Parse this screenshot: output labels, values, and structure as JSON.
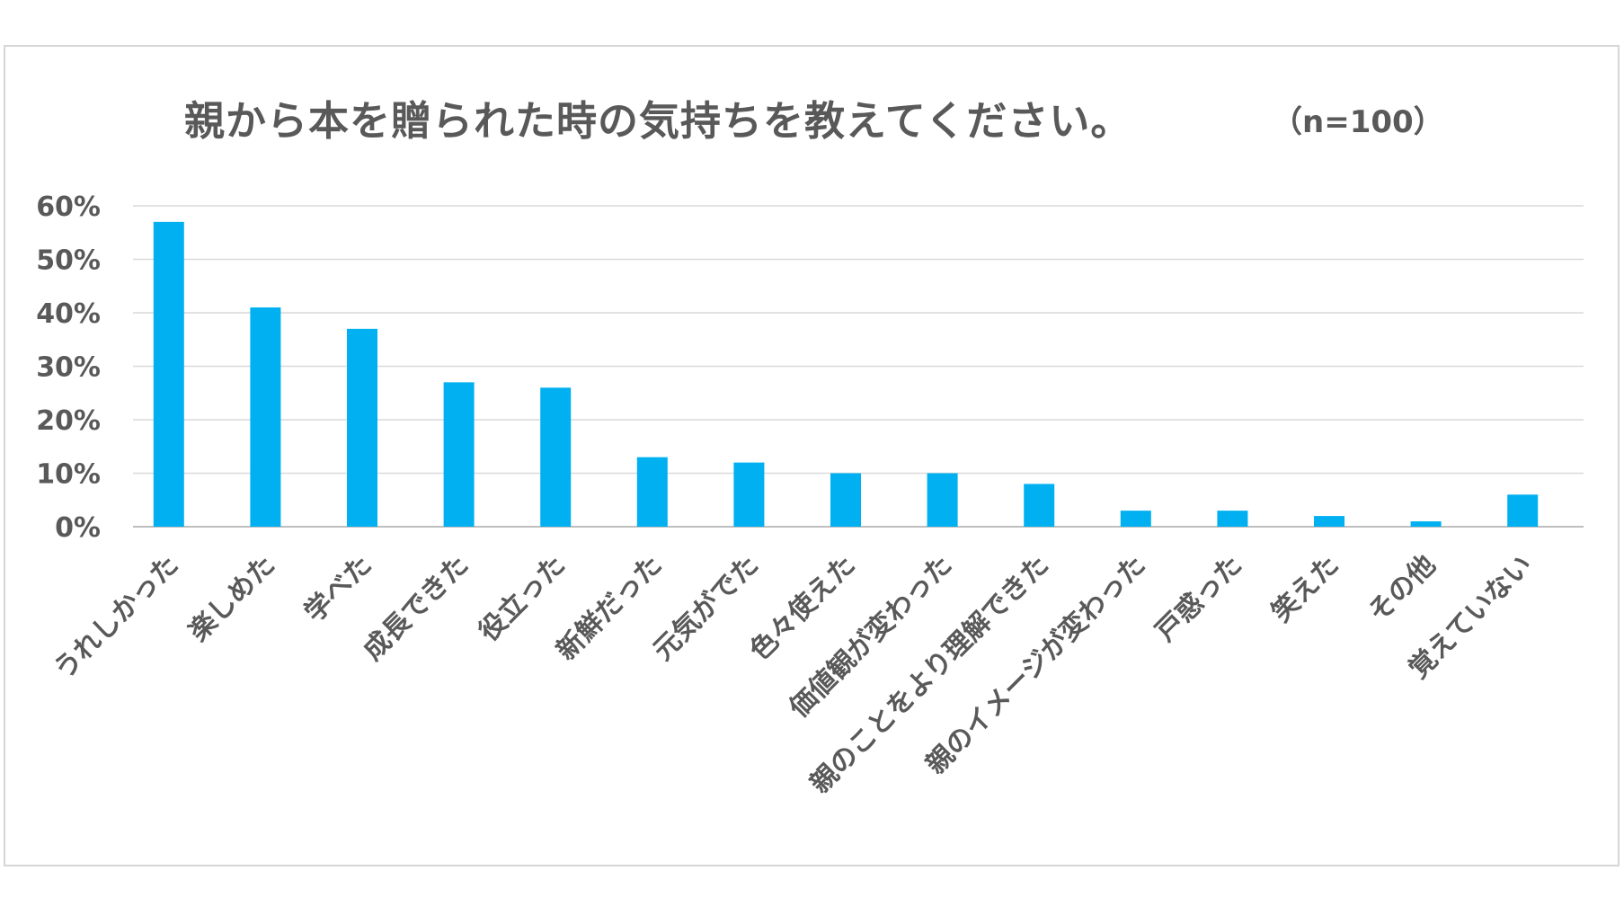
{
  "chart_data": {
    "type": "bar",
    "title": "親から本を贈られた時の気持ちを教えてください。",
    "subtitle": "（n=100）",
    "categories": [
      "うれしかった",
      "楽しめた",
      "学べた",
      "成長できた",
      "役立った",
      "新鮮だった",
      "元気がでた",
      "色々使えた",
      "価値観が変わった",
      "親のことをより理解できた",
      "親のイメージが変わった",
      "戸惑った",
      "笑えた",
      "その他",
      "覚えていない"
    ],
    "values": [
      57,
      41,
      37,
      27,
      26,
      13,
      12,
      10,
      10,
      8,
      3,
      3,
      2,
      1,
      6
    ],
    "yticks": [
      "0%",
      "10%",
      "20%",
      "30%",
      "40%",
      "50%",
      "60%"
    ],
    "ylim": [
      0,
      60
    ],
    "grid": true,
    "bar_color": "#00b0f0",
    "grid_color": "#d9d9d9"
  }
}
